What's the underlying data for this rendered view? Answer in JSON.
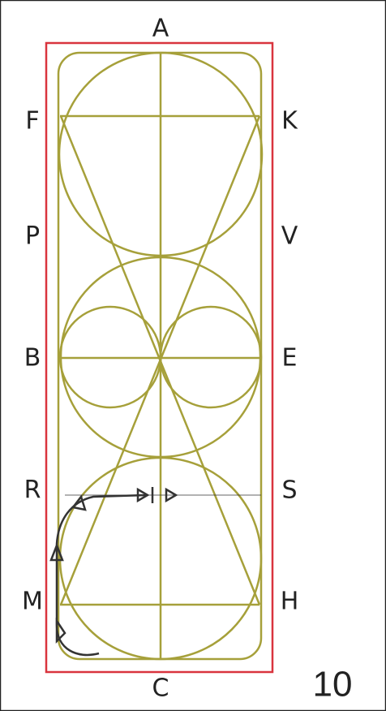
{
  "markers": {
    "top": "A",
    "left": [
      "F",
      "P",
      "B",
      "R",
      "M"
    ],
    "right": [
      "K",
      "V",
      "E",
      "S",
      "H"
    ],
    "bottom": "C"
  },
  "figure_number": "10"
}
